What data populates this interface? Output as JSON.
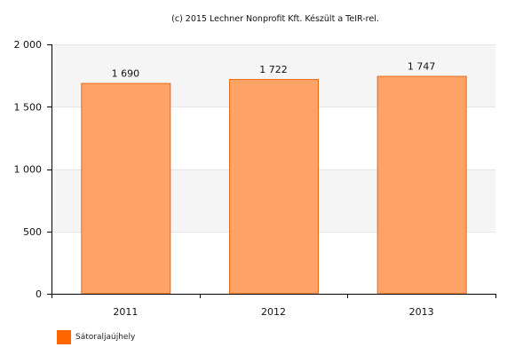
{
  "chart_data": {
    "type": "bar",
    "title": "(c) 2015 Lechner Nonprofit Kft. Készült a TeIR-rel.",
    "categories": [
      "2011",
      "2012",
      "2013"
    ],
    "series": [
      {
        "name": "Sátoraljaújhely",
        "values": [
          1690,
          1722,
          1747
        ],
        "labels": [
          "1 690",
          "1 722",
          "1 747"
        ]
      }
    ],
    "yticks": [
      0,
      500,
      1000,
      1500,
      2000
    ],
    "ytick_labels": [
      "0",
      "500",
      "1 000",
      "1 500",
      "2 000"
    ],
    "ylim": [
      0,
      2000
    ],
    "xlabel": "",
    "ylabel": "",
    "grid": true,
    "legend_position": "bottom-left"
  },
  "colors": {
    "bar_fill": "#ffa366",
    "bar_stroke": "#e66b14",
    "legend_swatch": "#ff6600",
    "band_light": "#f5f5f5",
    "axis": "#000000",
    "text": "#111111"
  }
}
